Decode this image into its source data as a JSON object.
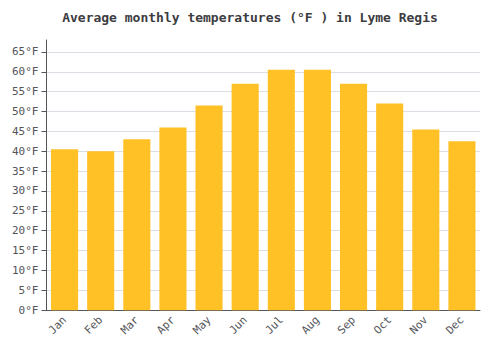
{
  "chart_data": {
    "type": "bar",
    "title": "Average monthly temperatures (°F ) in Lyme Regis",
    "categories": [
      "Jan",
      "Feb",
      "Mar",
      "Apr",
      "May",
      "Jun",
      "Jul",
      "Aug",
      "Sep",
      "Oct",
      "Nov",
      "Dec"
    ],
    "values": [
      40.5,
      40.0,
      43.0,
      46.0,
      51.5,
      57.0,
      60.5,
      60.5,
      57.0,
      52.0,
      45.5,
      42.5
    ],
    "color": "#FFC125",
    "ylim": [
      0,
      68
    ],
    "yticks": [
      {
        "value": 0,
        "label": "0°F"
      },
      {
        "value": 5,
        "label": "5°F"
      },
      {
        "value": 10,
        "label": "10°F"
      },
      {
        "value": 15,
        "label": "15°F"
      },
      {
        "value": 20,
        "label": "20°F"
      },
      {
        "value": 25,
        "label": "25°F"
      },
      {
        "value": 30,
        "label": "30°F"
      },
      {
        "value": 35,
        "label": "35°F"
      },
      {
        "value": 40,
        "label": "40°F"
      },
      {
        "value": 45,
        "label": "45°F"
      },
      {
        "value": 50,
        "label": "50°F"
      },
      {
        "value": 55,
        "label": "55°F"
      },
      {
        "value": 60,
        "label": "60°F"
      },
      {
        "value": 65,
        "label": "65°F"
      }
    ],
    "grid": true
  }
}
